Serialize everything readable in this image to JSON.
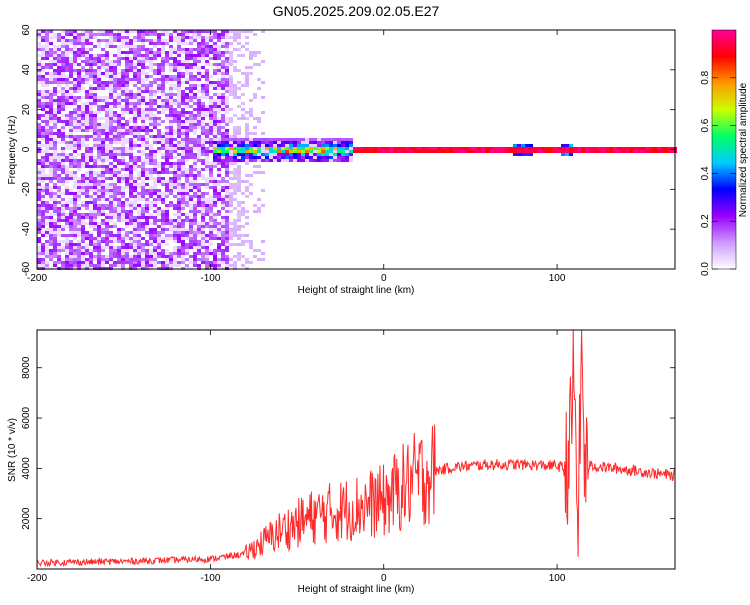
{
  "title": "GN05.2025.209.02.05.E27",
  "chart_data": [
    {
      "type": "heatmap",
      "title": "GN05.2025.209.02.05.E27",
      "xlabel": "Height of straight line (km)",
      "ylabel": "Frequency (Hz)",
      "xlim": [
        -200,
        168
      ],
      "ylim": [
        -60,
        60
      ],
      "x_ticks": [
        -200,
        -100,
        0,
        100
      ],
      "y_ticks": [
        -60,
        -40,
        -20,
        0,
        20,
        40,
        60
      ],
      "colorbar": {
        "label": "Normalized spectral amplitude",
        "range": [
          0,
          1
        ],
        "ticks": [
          0.0,
          0.2,
          0.4,
          0.6,
          0.8
        ],
        "colors": [
          "#ffffff",
          "#cc99ff",
          "#9900ff",
          "#0000ff",
          "#00ccff",
          "#00ff66",
          "#ccff00",
          "#ff9900",
          "#ff0000",
          "#ff0099"
        ]
      },
      "regions": [
        {
          "x_range": [
            -200,
            -90
          ],
          "freq_range": [
            -60,
            60
          ],
          "amplitude": 0.15,
          "description": "noise"
        },
        {
          "x_range": [
            -90,
            -70
          ],
          "freq_range": [
            -60,
            60
          ],
          "amplitude": 0.05
        },
        {
          "x_range": [
            -100,
            -20
          ],
          "freq_range": [
            -6,
            6
          ],
          "amplitude": 0.45
        },
        {
          "x_range": [
            -20,
            168
          ],
          "freq_range": [
            -1,
            1
          ],
          "amplitude": 0.95
        }
      ]
    },
    {
      "type": "line",
      "xlabel": "Height of straight line (km)",
      "ylabel": "SNR (10 * v/v)",
      "xlim": [
        -200,
        168
      ],
      "ylim": [
        0,
        9500
      ],
      "x_ticks": [
        -200,
        -100,
        0,
        100
      ],
      "y_ticks": [
        2000,
        4000,
        6000,
        8000
      ],
      "color": "#ff2a2a",
      "x": [
        -200,
        -150,
        -100,
        -80,
        -60,
        -40,
        -20,
        0,
        10,
        20,
        30,
        40,
        60,
        80,
        100,
        105,
        108,
        110,
        112,
        114,
        116,
        120,
        140,
        168
      ],
      "y": [
        250,
        300,
        400,
        600,
        1500,
        2100,
        2400,
        2700,
        3200,
        3600,
        3900,
        4050,
        4150,
        4150,
        4100,
        4000,
        5000,
        8800,
        500,
        9000,
        4100,
        4100,
        3950,
        3700
      ]
    }
  ]
}
